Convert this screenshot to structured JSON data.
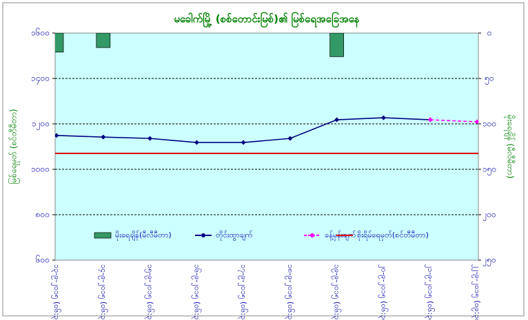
{
  "chart_data": {
    "type": "combo",
    "title": "မခေါက်မြို့ (စစ်တောင်းမြစ်)၏ မြစ်ရေအခြေအနေ",
    "y_label": "မြစ်ရေမှတ် (စင်တီမီတာ)",
    "y2_label": "မိုးရေချိန် (မီလီမီတာ)",
    "categories": [
      "၁၃-၉-၂၀၁၅ (၀၆:၃၀)",
      "၁၄-၉-၂၀၁၅ (၀၆:၃၀)",
      "၁၅-၉-၂၀၁၅ (၀၆:၃၀)",
      "၁၆-၉-၂၀၁၅ (၀၆:၃၀)",
      "၁၇-၉-၂၀၁၅ (၀၆:၃၀)",
      "၁၈-၉-၂၀၁၅ (၀၆:၃၀)",
      "၁၉-၉-၂၀၁၅ (၀၆:၃၀)",
      "၂၀-၉-၂၀၁၅ (၀၆:၃၀)",
      "၂၁-၉-၂၀၁၅ (၀၆:၃၀)",
      "၂၂-၉-၂၀၁၅ (၀၉:၃၀)"
    ],
    "series": [
      {
        "name": "မိုးရေချိန်(မီလီမီတာ)",
        "type": "bar",
        "axis": "y2",
        "color": "#339966",
        "values": [
          21,
          16,
          0,
          0,
          0,
          0,
          26,
          0,
          0,
          0
        ]
      },
      {
        "name": "တိုင်းထွာချက်",
        "type": "line",
        "color": "#000080",
        "values": [
          1149,
          1142,
          1136,
          1118,
          1118,
          1136,
          1218,
          1227,
          1218,
          null
        ]
      },
      {
        "name": "ခန့်မှန်းချက်",
        "type": "line",
        "dashed": true,
        "color": "#ff00ff",
        "values": [
          null,
          null,
          null,
          null,
          null,
          null,
          null,
          null,
          1218,
          1209
        ]
      },
      {
        "name": "စိုးရိမ်ရေမှတ်(စင်တီမီတာ)",
        "type": "hline",
        "color": "#e00000",
        "value": 1070
      }
    ],
    "ylim": [
      600,
      1600
    ],
    "yticks": [
      {
        "value": 600,
        "label": "၆၀၀"
      },
      {
        "value": 800,
        "label": "၈၀၀"
      },
      {
        "value": 1000,
        "label": "၁၀၀၀"
      },
      {
        "value": 1200,
        "label": "၁၂၀၀"
      },
      {
        "value": 1400,
        "label": "၁၄၀၀"
      },
      {
        "value": 1600,
        "label": "၁၆၀၀"
      }
    ],
    "y2lim": [
      250,
      0
    ],
    "y2ticks": [
      {
        "value": 0,
        "label": "၀"
      },
      {
        "value": 50,
        "label": "၅၀"
      },
      {
        "value": 100,
        "label": "၁၀၀"
      },
      {
        "value": 150,
        "label": "၁၅၀"
      },
      {
        "value": 200,
        "label": "၂၀၀"
      },
      {
        "value": 250,
        "label": "၂၅၀"
      }
    ],
    "grid": true,
    "plot_color": "#ccffff"
  }
}
